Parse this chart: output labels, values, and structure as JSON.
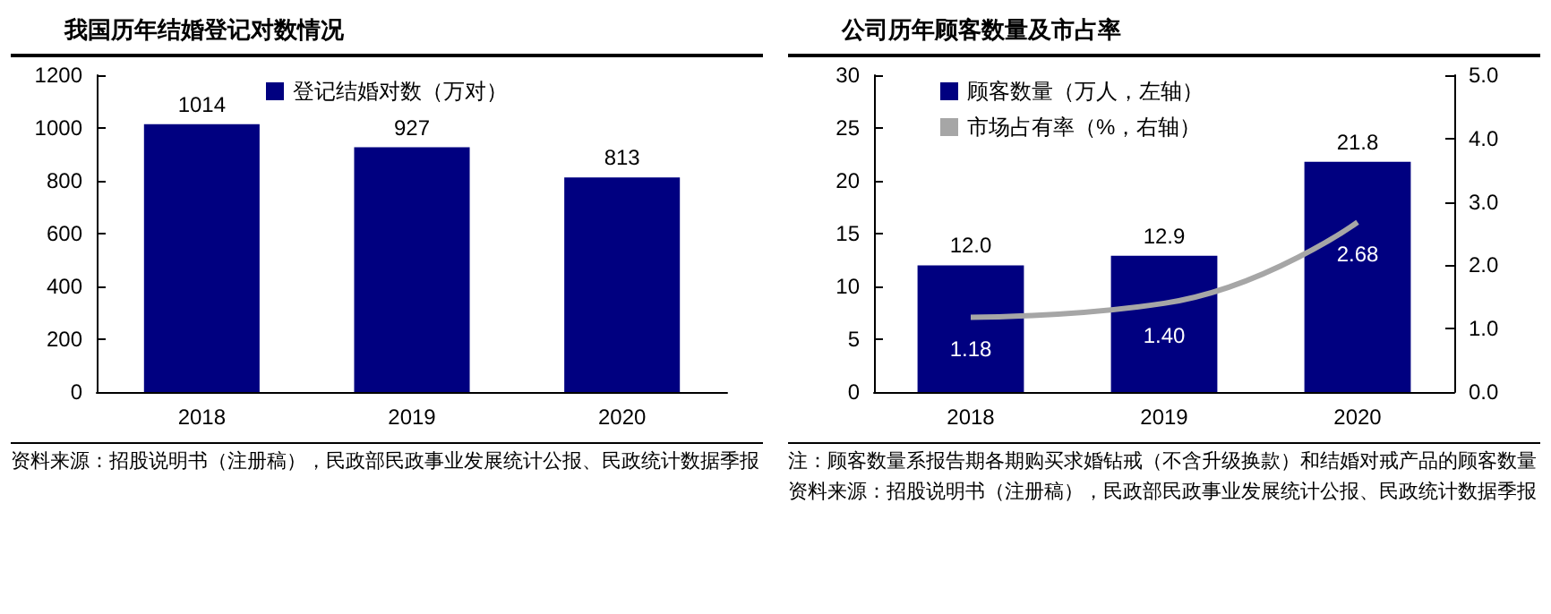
{
  "chart_data": [
    {
      "type": "bar",
      "title": "我国历年结婚登记对数情况",
      "categories": [
        "2018",
        "2019",
        "2020"
      ],
      "series": [
        {
          "name": "登记结婚对数（万对）",
          "color": "#000080",
          "values": [
            1014,
            927,
            813
          ]
        }
      ],
      "ylim": [
        0,
        1200
      ],
      "yticks": [
        0,
        200,
        400,
        600,
        800,
        1000,
        1200
      ],
      "data_labels": true,
      "legend": "top",
      "grid": false,
      "annotations": [
        "资料来源：招股说明书（注册稿），民政部民政事业发展统计公报、民政统计数据季报"
      ]
    },
    {
      "type": "bar",
      "title": "公司历年顾客数量及市占率",
      "categories": [
        "2018",
        "2019",
        "2020"
      ],
      "series": [
        {
          "name": "顾客数量（万人，左轴）",
          "color": "#000080",
          "values": [
            12.0,
            12.9,
            21.8
          ],
          "value_labels": [
            "12.0",
            "12.9",
            "21.8"
          ]
        },
        {
          "name": "市场占有率（%，右轴）",
          "type": "line",
          "axis": "y2",
          "color": "#a6a6a6",
          "values": [
            1.18,
            1.4,
            2.68
          ],
          "value_labels": [
            "1.18",
            "1.40",
            "2.68"
          ]
        }
      ],
      "ylim": [
        0,
        30
      ],
      "yticks": [
        0,
        5,
        10,
        15,
        20,
        25,
        30
      ],
      "y2lim": [
        0,
        5
      ],
      "y2ticks": [
        {
          "value": 0,
          "label": "0.0"
        },
        {
          "value": 1,
          "label": "1.0"
        },
        {
          "value": 2,
          "label": "2.0"
        },
        {
          "value": 3,
          "label": "3.0"
        },
        {
          "value": 4,
          "label": "4.0"
        },
        {
          "value": 5,
          "label": "5.0"
        }
      ],
      "legend": "top left",
      "grid": false,
      "marker": "none",
      "annotations": [
        "注：顾客数量系报告期各期购买求婚钻戒（不含升级换款）和结婚对戒产品的顾客数量",
        "资料来源：招股说明书（注册稿），民政部民政事业发展统计公报、民政统计数据季报"
      ]
    }
  ]
}
